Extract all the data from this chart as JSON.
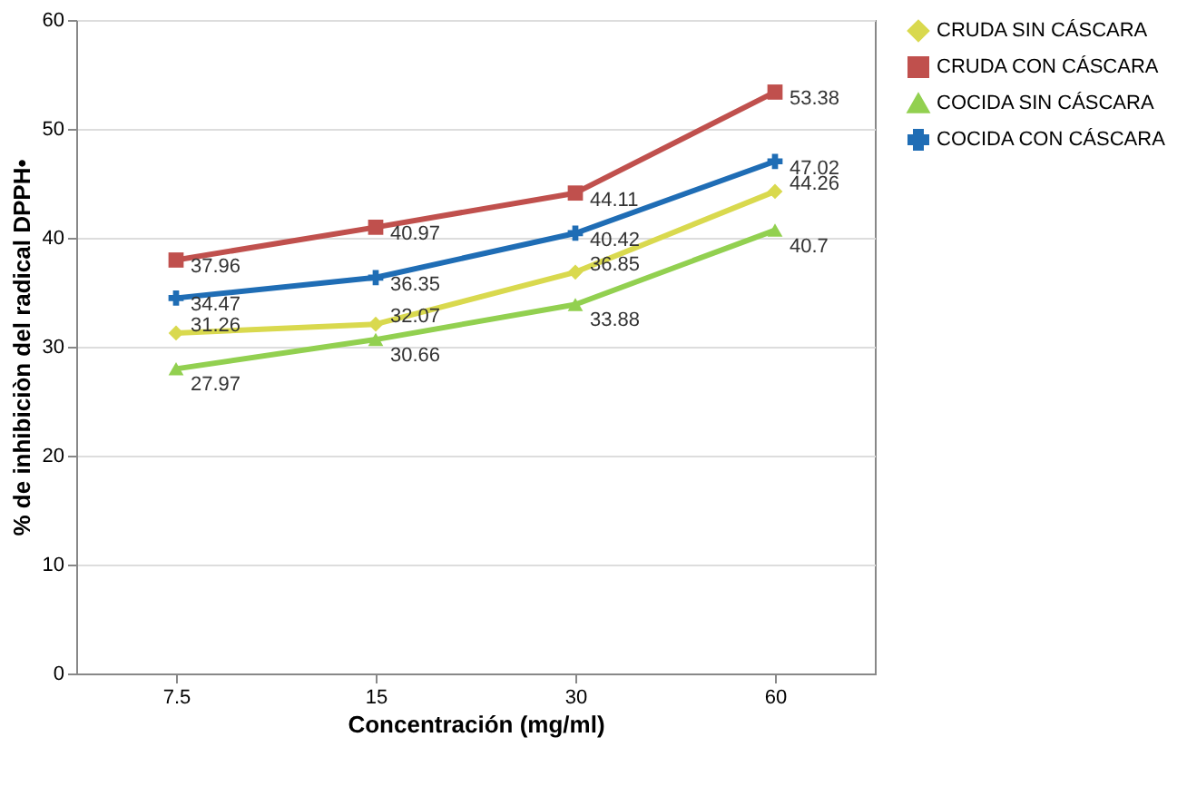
{
  "chart_data": {
    "type": "line",
    "xlabel": "Concentración (mg/ml)",
    "ylabel": "% de inhibiciòn  del radical DPPH•",
    "categories": [
      "7.5",
      "15",
      "30",
      "60"
    ],
    "series": [
      {
        "name": "CRUDA SIN CÁSCARA",
        "color": "#d9d94e",
        "marker": "diamond",
        "values": [
          31.26,
          32.07,
          36.85,
          44.26
        ]
      },
      {
        "name": "CRUDA CON CÁSCARA",
        "color": "#c0504d",
        "marker": "square",
        "values": [
          37.96,
          40.97,
          44.11,
          53.38
        ]
      },
      {
        "name": "COCIDA SIN CÁSCARA",
        "color": "#92d050",
        "marker": "triangle",
        "values": [
          27.97,
          30.66,
          33.88,
          40.7
        ]
      },
      {
        "name": "COCIDA CON CÁSCARA",
        "color": "#1f6db5",
        "marker": "cross",
        "values": [
          34.47,
          36.35,
          40.42,
          47.02
        ]
      }
    ],
    "ylim": [
      0,
      60
    ],
    "yticks": [
      0,
      10,
      20,
      30,
      40,
      50,
      60
    ],
    "grid": "y",
    "legend": "right",
    "data_labels": true
  }
}
